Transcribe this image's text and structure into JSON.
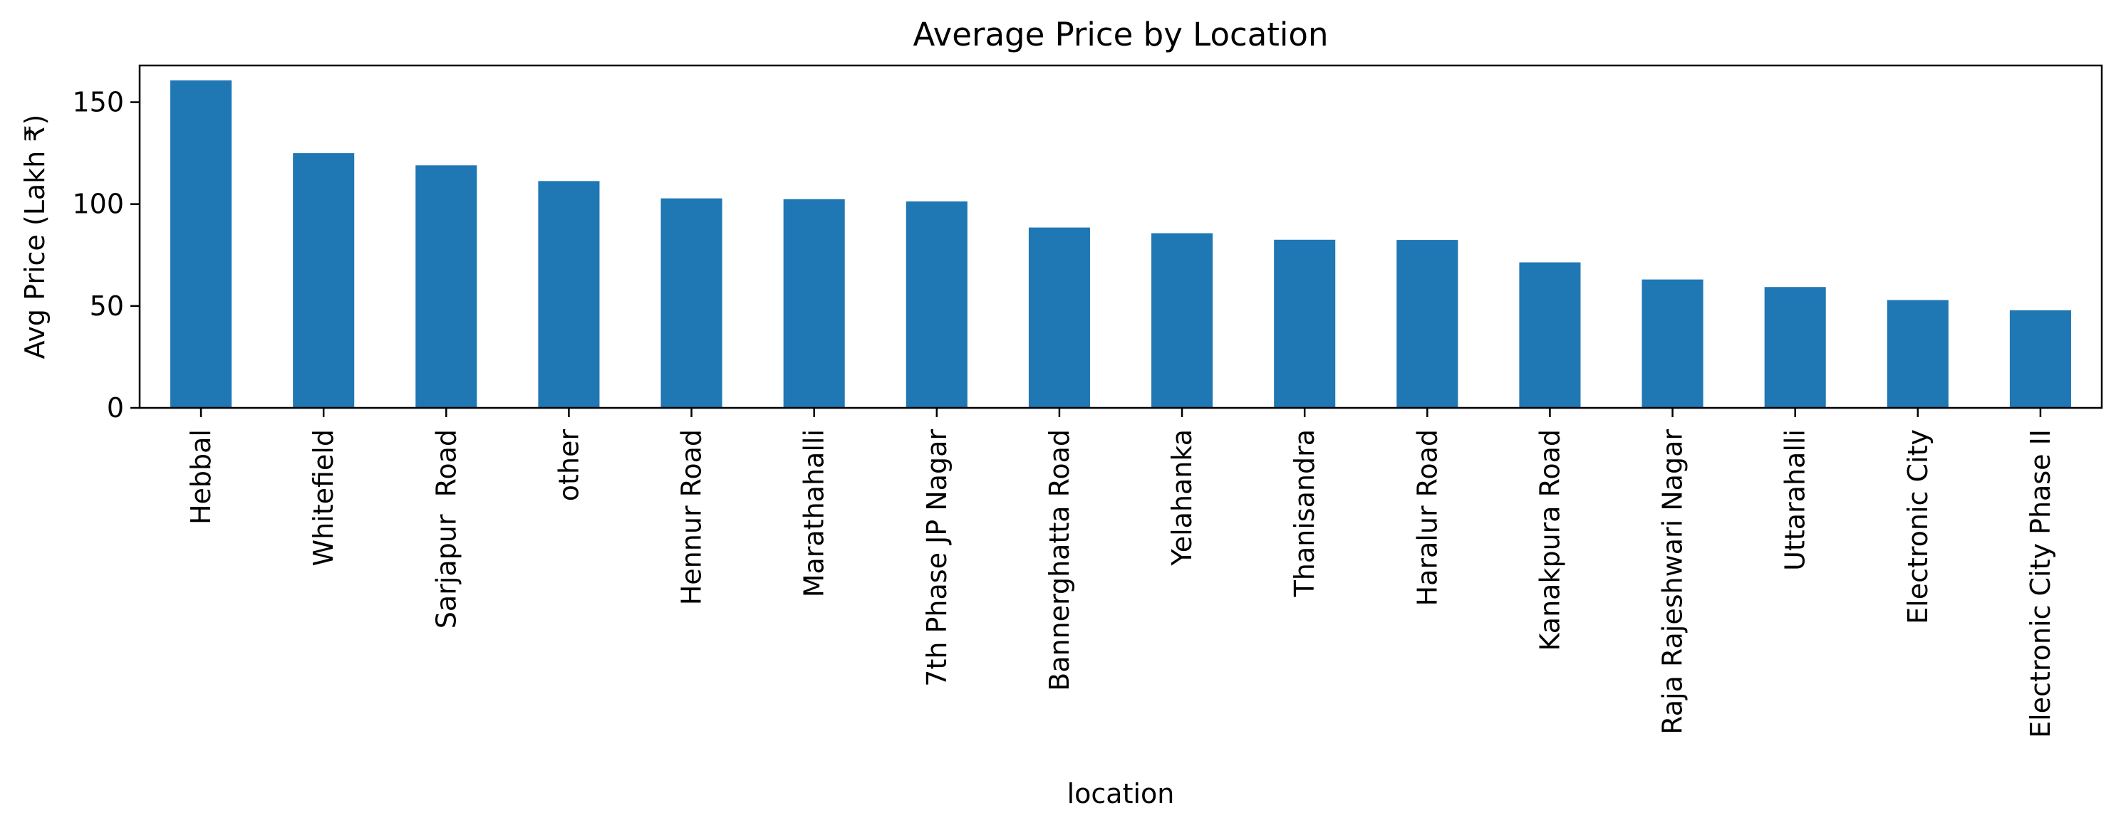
{
  "chart_data": {
    "type": "bar",
    "title": "Average Price by Location",
    "xlabel": "location",
    "ylabel": "Avg Price (Lakh ₹)",
    "ylim": [
      0,
      168
    ],
    "yticks": [
      0,
      50,
      100,
      150
    ],
    "grid": false,
    "legend": "none",
    "categories": [
      "Hebbal",
      "Whitefield",
      "Sarjapur  Road",
      "other",
      "Hennur Road",
      "Marathahalli",
      "7th Phase JP Nagar",
      "Bannerghatta Road",
      "Yelahanka",
      "Thanisandra",
      "Haralur Road",
      "Kanakpura Road",
      "Raja Rajeshwari Nagar",
      "Uttarahalli",
      "Electronic City",
      "Electronic City Phase II"
    ],
    "series": [
      {
        "values": [
          160.7,
          125.0,
          119.0,
          111.3,
          102.8,
          102.4,
          101.3,
          88.5,
          85.7,
          82.5,
          82.4,
          71.4,
          63.0,
          59.3,
          52.9,
          47.9
        ],
        "color": "#1f77b4"
      }
    ]
  }
}
